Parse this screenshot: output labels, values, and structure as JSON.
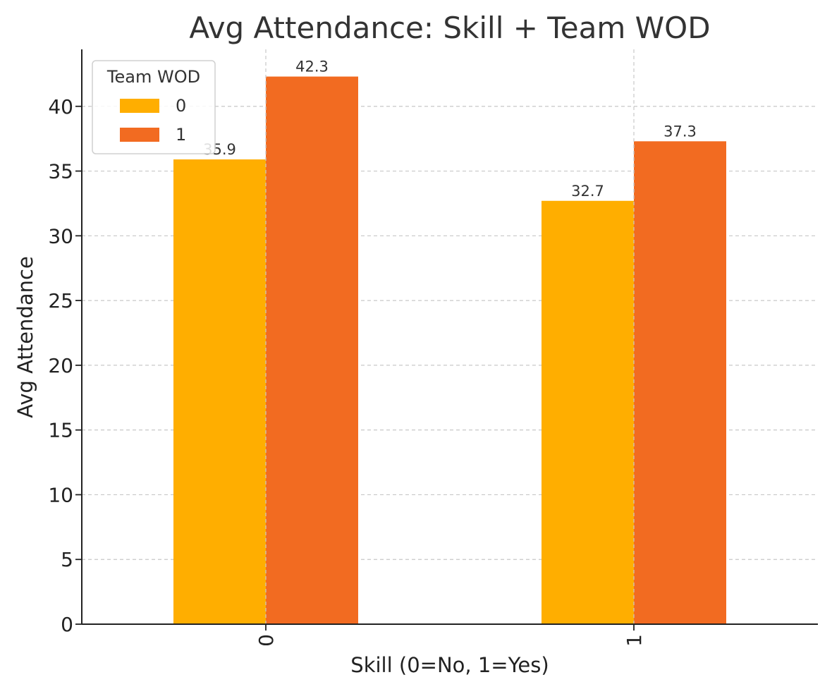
{
  "chart_data": {
    "type": "bar",
    "title": "Avg Attendance: Skill + Team WOD",
    "xlabel": "Skill (0=No, 1=Yes)",
    "ylabel": "Avg Attendance",
    "categories": [
      "0",
      "1"
    ],
    "series": [
      {
        "name": "0",
        "values": [
          35.9,
          32.7
        ],
        "color": "#FFAE00"
      },
      {
        "name": "1",
        "values": [
          42.3,
          37.3
        ],
        "color": "#F26B21"
      }
    ],
    "data_labels": true,
    "ylim": [
      0,
      44.4
    ],
    "yticks": [
      0,
      5,
      10,
      15,
      20,
      25,
      30,
      35,
      40
    ],
    "x_tick_rotation": 90,
    "grid": true,
    "grid_style": "dashed",
    "legend": {
      "title": "Team WOD",
      "placement": "top-left"
    }
  }
}
